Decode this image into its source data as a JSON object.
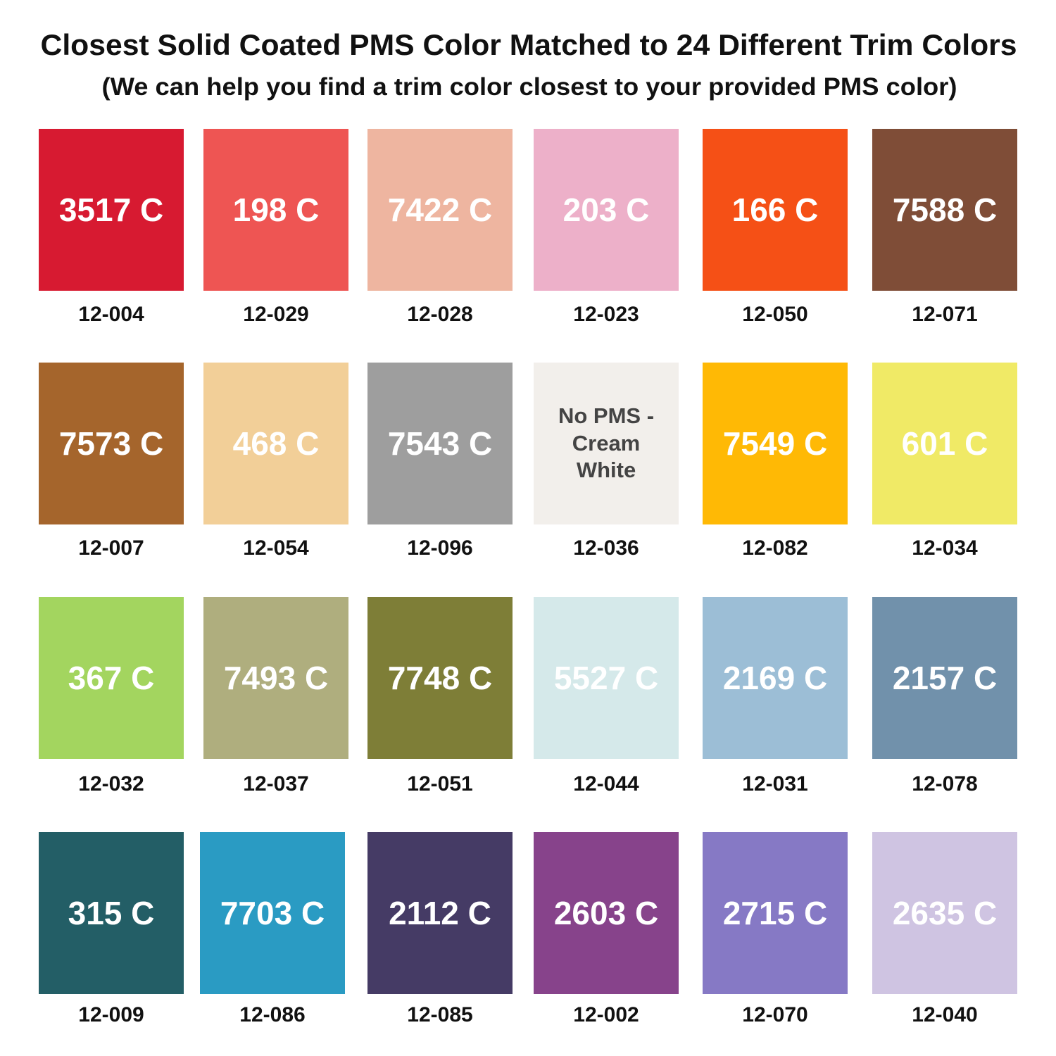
{
  "header": {
    "title": "Closest Solid Coated PMS Color Matched to 24 Different Trim Colors",
    "subtitle": "(We can help you find a trim color closest to your provided PMS color)"
  },
  "swatches": [
    {
      "pms": "3517 C",
      "code": "12-004",
      "color": "#d71a31",
      "text_color": "#ffffff"
    },
    {
      "pms": "198 C",
      "code": "12-029",
      "color": "#ee5553",
      "text_color": "#ffffff"
    },
    {
      "pms": "7422 C",
      "code": "12-028",
      "color": "#eeb5a0",
      "text_color": "#ffffff"
    },
    {
      "pms": "203 C",
      "code": "12-023",
      "color": "#edb0c9",
      "text_color": "#ffffff"
    },
    {
      "pms": "166 C",
      "code": "12-050",
      "color": "#f55016",
      "text_color": "#ffffff"
    },
    {
      "pms": "7588 C",
      "code": "12-071",
      "color": "#7f4d37",
      "text_color": "#ffffff"
    },
    {
      "pms": "7573 C",
      "code": "12-007",
      "color": "#a5652c",
      "text_color": "#ffffff"
    },
    {
      "pms": "468 C",
      "code": "12-054",
      "color": "#f2cf98",
      "text_color": "#ffffff"
    },
    {
      "pms": "7543 C",
      "code": "12-096",
      "color": "#9e9e9e",
      "text_color": "#ffffff"
    },
    {
      "pms": "No PMS - Cream White",
      "code": "12-036",
      "color": "#f2efeb",
      "text_color": "#444444"
    },
    {
      "pms": "7549 C",
      "code": "12-082",
      "color": "#ffb905",
      "text_color": "#ffffff"
    },
    {
      "pms": "601 C",
      "code": "12-034",
      "color": "#f0ea66",
      "text_color": "#ffffff"
    },
    {
      "pms": "367 C",
      "code": "12-032",
      "color": "#a3d55f",
      "text_color": "#ffffff"
    },
    {
      "pms": "7493 C",
      "code": "12-037",
      "color": "#afae7e",
      "text_color": "#ffffff"
    },
    {
      "pms": "7748 C",
      "code": "12-051",
      "color": "#7e7e37",
      "text_color": "#ffffff"
    },
    {
      "pms": "5527 C",
      "code": "12-044",
      "color": "#d5e9ea",
      "text_color": "#ffffff"
    },
    {
      "pms": "2169 C",
      "code": "12-031",
      "color": "#9cbed6",
      "text_color": "#ffffff"
    },
    {
      "pms": "2157 C",
      "code": "12-078",
      "color": "#7191ab",
      "text_color": "#ffffff"
    },
    {
      "pms": "315 C",
      "code": "12-009",
      "color": "#235e66",
      "text_color": "#ffffff"
    },
    {
      "pms": "7703 C",
      "code": "12-086",
      "color": "#2a9bc3",
      "text_color": "#ffffff"
    },
    {
      "pms": "2112 C",
      "code": "12-085",
      "color": "#453b65",
      "text_color": "#ffffff"
    },
    {
      "pms": "2603 C",
      "code": "12-002",
      "color": "#87438b",
      "text_color": "#ffffff"
    },
    {
      "pms": "2715 C",
      "code": "12-070",
      "color": "#8679c5",
      "text_color": "#ffffff"
    },
    {
      "pms": "2635 C",
      "code": "12-040",
      "color": "#cfc4e2",
      "text_color": "#ffffff"
    }
  ]
}
